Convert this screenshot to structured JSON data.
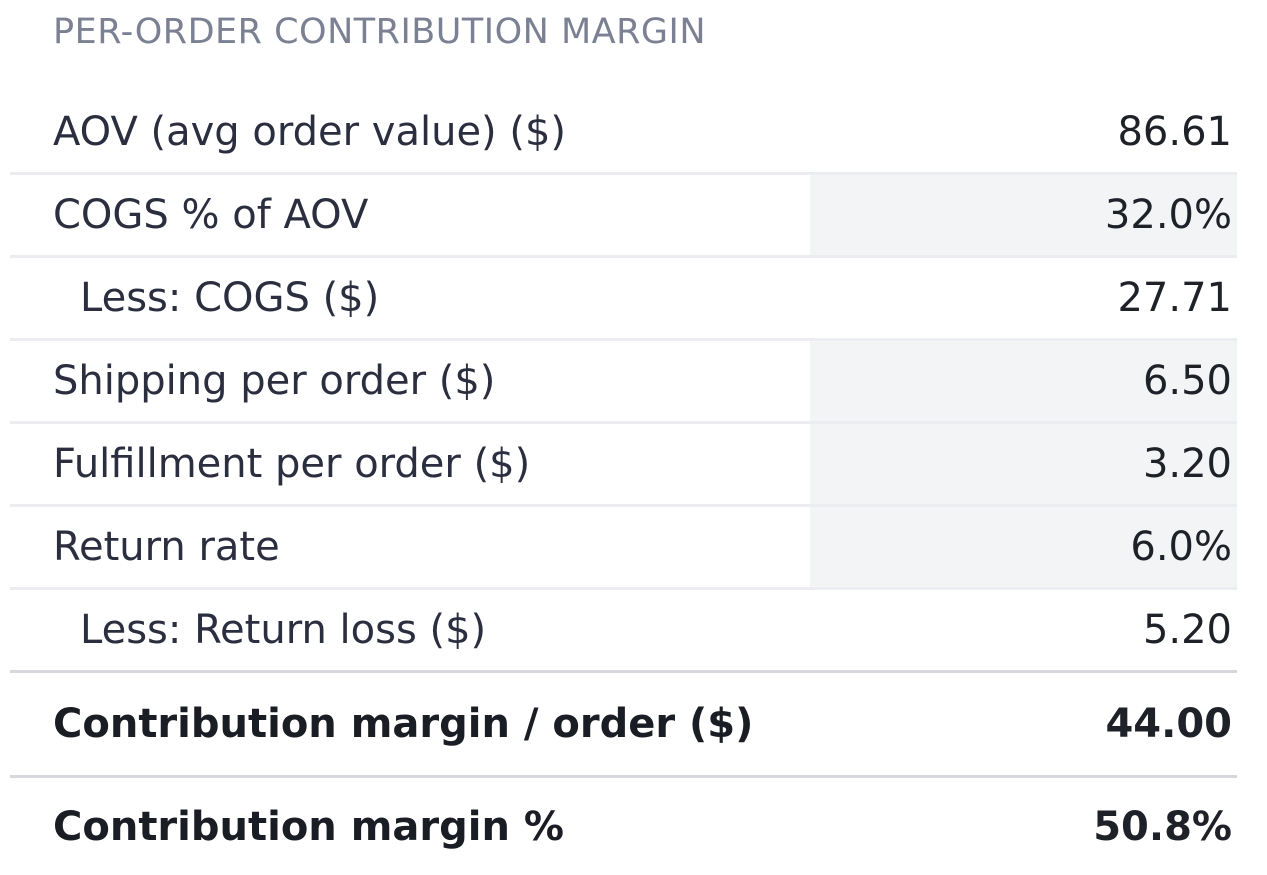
{
  "header": {
    "title": "PER-ORDER CONTRIBUTION MARGIN"
  },
  "table": {
    "rows": [
      [
        "AOV (avg order value) ($)",
        "86.61"
      ],
      [
        "COGS % of AOV",
        "32.0%"
      ],
      [
        "Less: COGS ($)",
        "27.71"
      ],
      [
        "Shipping per order ($)",
        "6.50"
      ],
      [
        "Fulfillment per order ($)",
        "3.20"
      ],
      [
        "Return rate",
        "6.0%"
      ],
      [
        "Less: Return loss ($)",
        "5.20"
      ],
      [
        "Contribution margin / order ($)",
        "44.00"
      ],
      [
        "Contribution margin %",
        "50.8%"
      ]
    ]
  }
}
